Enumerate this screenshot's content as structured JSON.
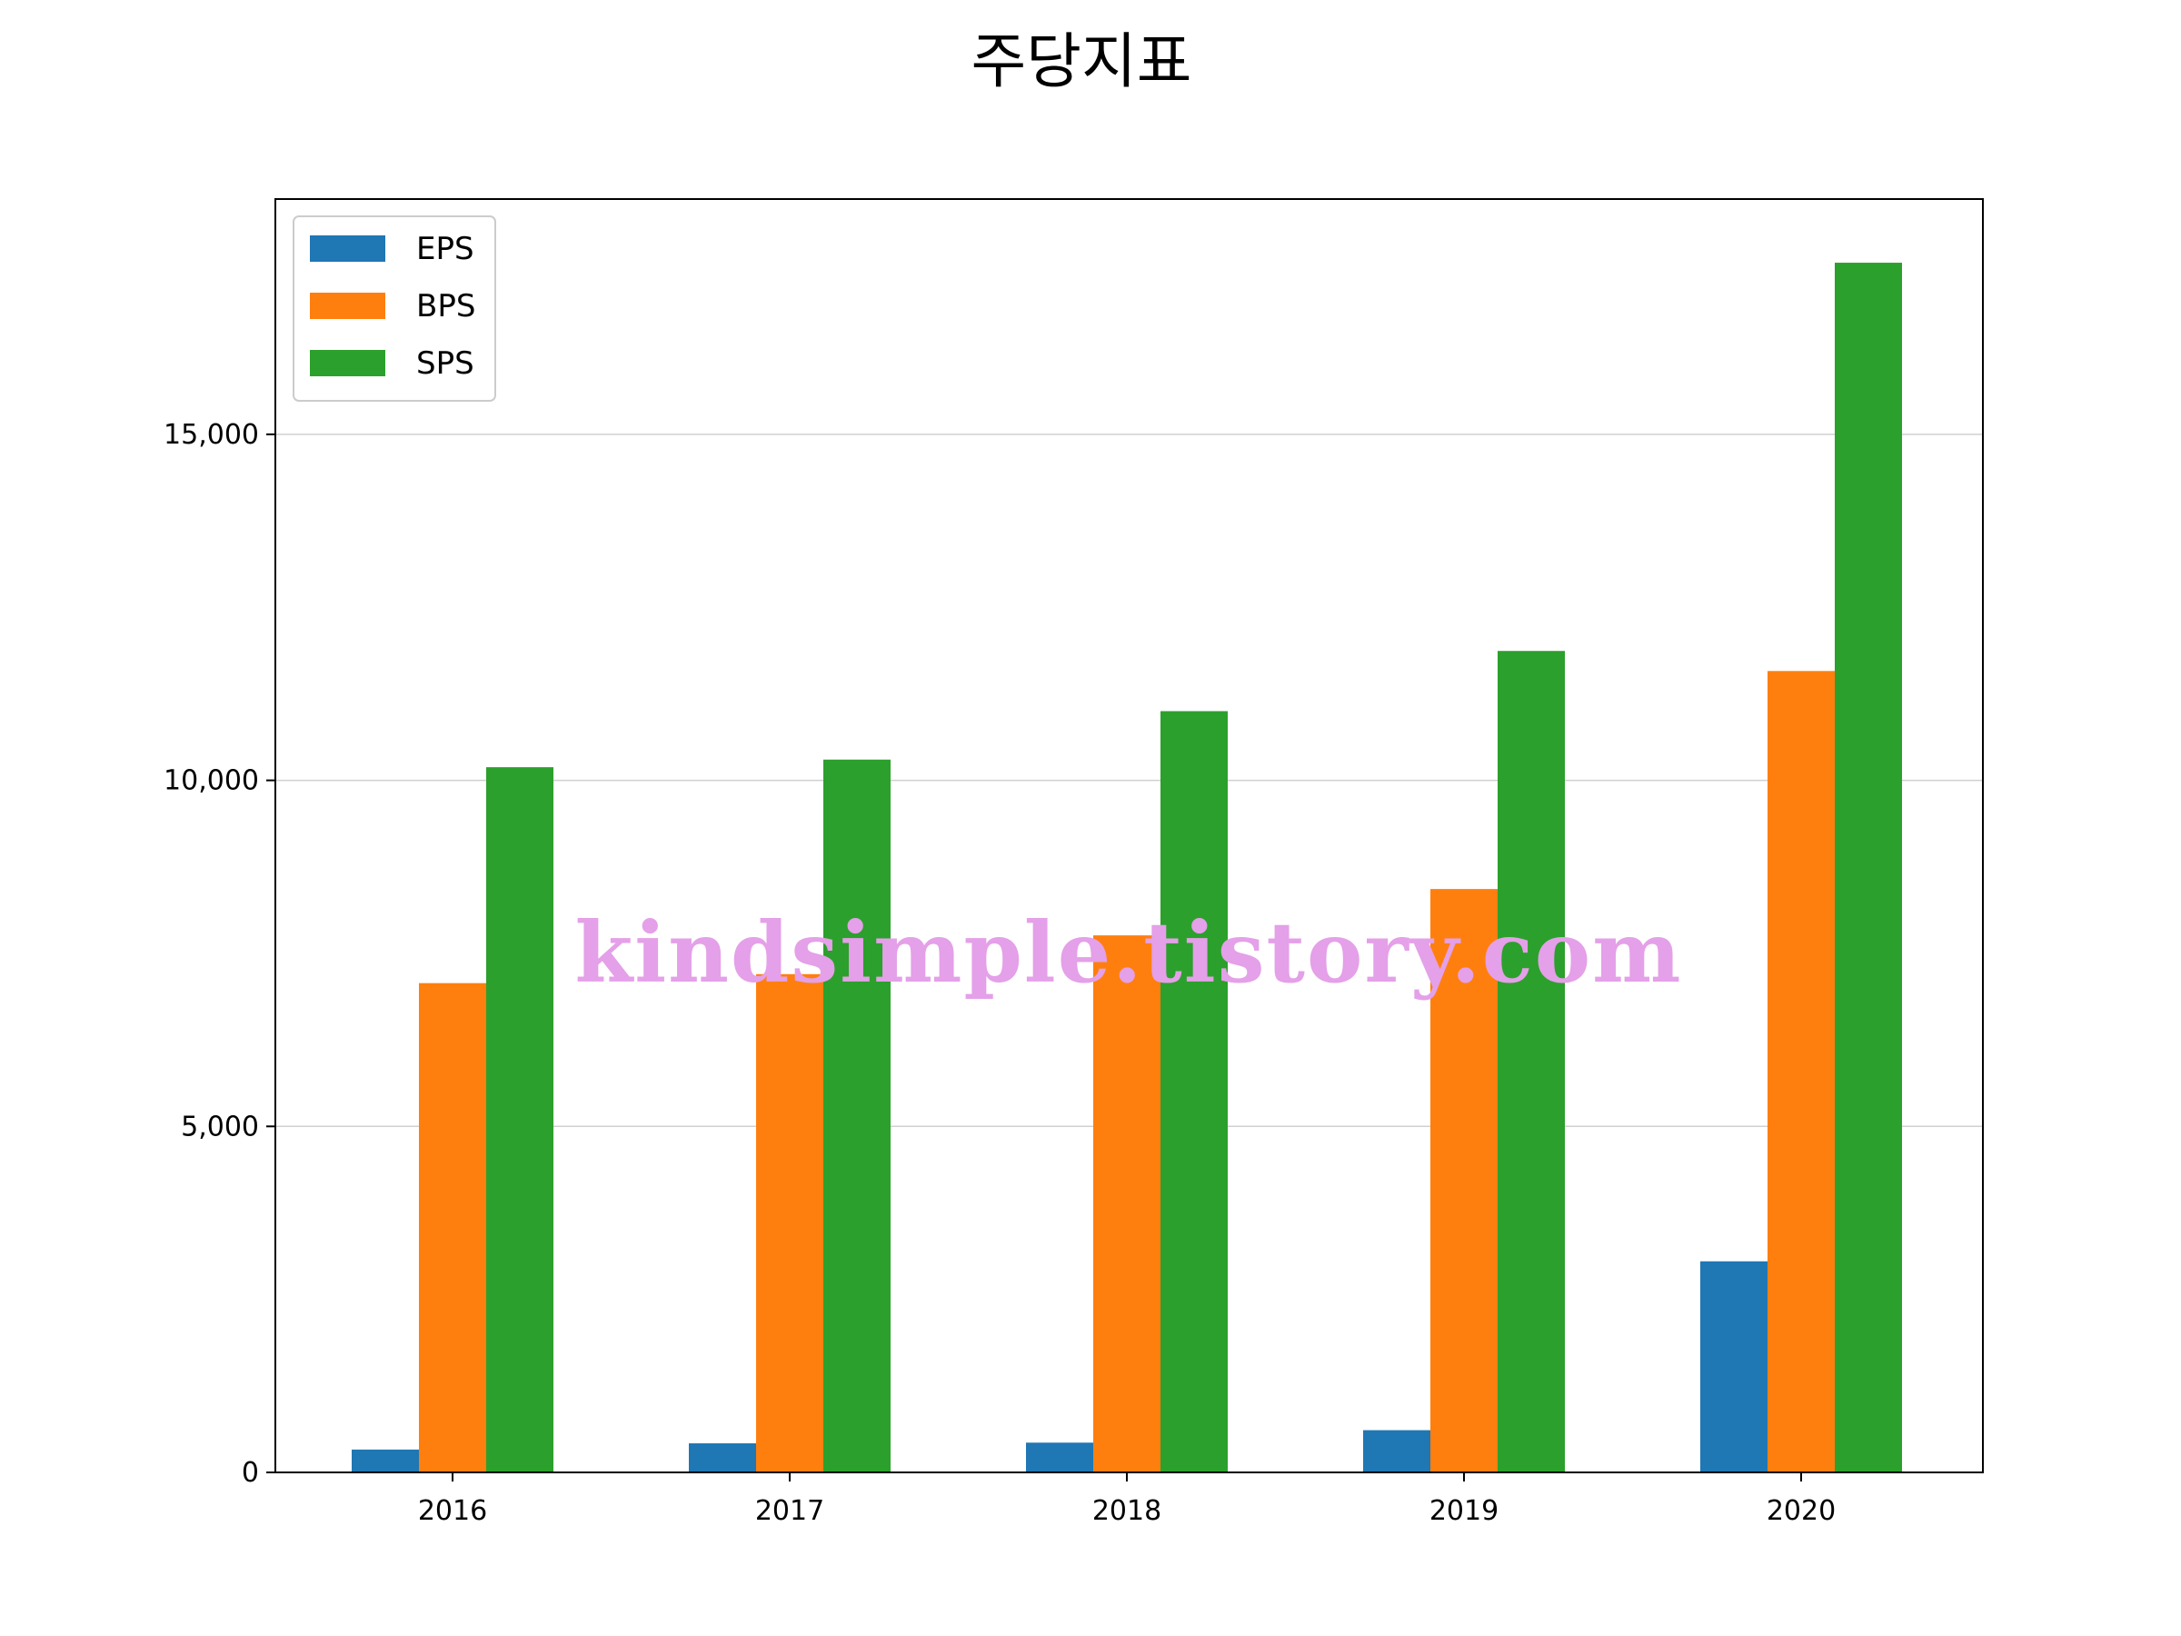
{
  "chart_data": {
    "type": "bar",
    "title": "주당지표",
    "xlabel": "",
    "ylabel": "",
    "categories": [
      "2016",
      "2017",
      "2018",
      "2019",
      "2020"
    ],
    "series": [
      {
        "name": "EPS",
        "color": "#1f77b4",
        "values": [
          330,
          420,
          430,
          610,
          3050
        ]
      },
      {
        "name": "BPS",
        "color": "#ff7f0e",
        "values": [
          7070,
          7200,
          7760,
          8430,
          11580
        ]
      },
      {
        "name": "SPS",
        "color": "#2ca02c",
        "values": [
          10190,
          10300,
          11000,
          11870,
          17480
        ]
      }
    ],
    "ylim": [
      0,
      18400
    ],
    "yticks": [
      0,
      5000,
      10000,
      15000
    ],
    "ytick_labels": [
      "0",
      "5,000",
      "10,000",
      "15,000"
    ],
    "grid": "horizontal",
    "legend_position": "top-left"
  },
  "watermark": {
    "text": "kindsimple.tistory.com",
    "color": "#e4a0e8"
  }
}
